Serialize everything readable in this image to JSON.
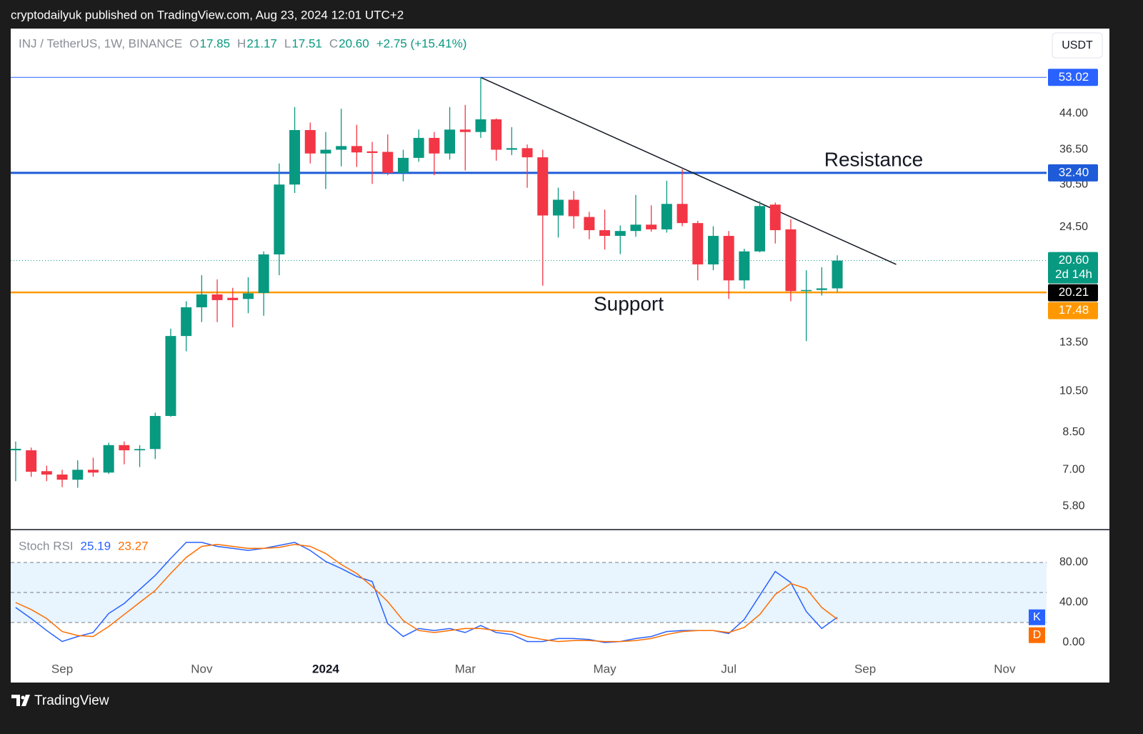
{
  "chart_data": {
    "type": "candlestick",
    "published": "cryptodailyuk published on TradingView.com, Aug 23, 2024 12:01 UTC+2",
    "brand": "TradingView",
    "currency": "USDT",
    "header": {
      "symbol": "INJ / TetherUS, 1W, BINANCE",
      "ohlc_labels": [
        "O",
        "H",
        "L",
        "C"
      ],
      "ohlc_values": [
        "17.85",
        "21.17",
        "17.51",
        "20.60"
      ],
      "change": "+2.75 (+15.41%)"
    },
    "up_color": "#089981",
    "down_color": "#f23645",
    "series": {
      "open": [
        7.74,
        7.74,
        6.95,
        6.83,
        6.65,
        7.0,
        6.9,
        7.95,
        7.74,
        7.79,
        9.24,
        13.96,
        16.19,
        17.3,
        17.0,
        16.9,
        17.43,
        21.27,
        30.5,
        40.4,
        35.8,
        36.5,
        37.2,
        36.2,
        36.1,
        32.4,
        35.0,
        38.8,
        35.8,
        40.5,
        40.0,
        42.7,
        36.5,
        36.8,
        35.1,
        26.0,
        28.2,
        25.8,
        24.1,
        23.4,
        24.0,
        24.8,
        24.2,
        27.6,
        25.0,
        20.2,
        23.4,
        18.6,
        21.6,
        27.5,
        24.2,
        17.6,
        17.7,
        17.85
      ],
      "high": [
        8.1,
        7.85,
        7.15,
        7.0,
        7.35,
        7.45,
        8.05,
        8.1,
        7.95,
        9.4,
        14.5,
        16.7,
        19.1,
        18.7,
        17.9,
        18.9,
        21.6,
        34.0,
        45.5,
        42.0,
        40.0,
        45.1,
        41.5,
        38.0,
        39.5,
        36.5,
        40.5,
        40.0,
        45.5,
        46.0,
        53.02,
        42.9,
        41.0,
        37.5,
        36.5,
        30.0,
        29.5,
        26.5,
        26.8,
        24.7,
        28.9,
        27.4,
        31.1,
        33.0,
        25.3,
        24.6,
        24.0,
        21.9,
        28.0,
        27.8,
        25.5,
        19.6,
        19.9,
        21.17
      ],
      "low": [
        6.6,
        6.75,
        6.6,
        6.4,
        6.38,
        6.75,
        6.85,
        7.2,
        7.1,
        7.4,
        9.2,
        12.9,
        15.0,
        15.0,
        14.6,
        15.7,
        15.5,
        19.1,
        29.2,
        34.0,
        29.8,
        33.5,
        33.4,
        30.6,
        32.0,
        31.0,
        34.3,
        32.0,
        34.7,
        32.8,
        38.8,
        34.5,
        35.5,
        30.0,
        18.1,
        23.2,
        24.3,
        23.0,
        21.8,
        21.3,
        23.3,
        23.9,
        23.8,
        24.6,
        18.6,
        19.6,
        16.9,
        17.8,
        21.5,
        22.5,
        16.7,
        13.6,
        17.2,
        17.51
      ],
      "close": [
        7.8,
        6.93,
        6.83,
        6.65,
        7.0,
        6.9,
        7.95,
        7.74,
        7.79,
        9.24,
        13.96,
        16.19,
        17.3,
        16.8,
        16.8,
        17.4,
        21.27,
        30.5,
        40.4,
        35.8,
        36.5,
        37.2,
        36.0,
        35.9,
        32.4,
        35.0,
        38.8,
        35.8,
        40.5,
        40.0,
        42.7,
        36.5,
        36.8,
        35.1,
        26.0,
        28.2,
        25.9,
        24.1,
        23.4,
        24.0,
        24.8,
        24.2,
        27.6,
        25.0,
        20.2,
        23.4,
        18.6,
        21.6,
        27.3,
        24.1,
        17.6,
        17.7,
        17.85,
        20.6
      ]
    },
    "log_scale": true,
    "grid": false,
    "ylim": [
      5.16,
      68.2
    ],
    "yticks": [
      {
        "value": 44,
        "label": "44.00"
      },
      {
        "value": 36.5,
        "label": "36.50"
      },
      {
        "value": 30.5,
        "label": "30.50"
      },
      {
        "value": 24.5,
        "label": "24.50"
      },
      {
        "value": 13.5,
        "label": "13.50"
      },
      {
        "value": 10.5,
        "label": "10.50"
      },
      {
        "value": 8.5,
        "label": "8.50"
      },
      {
        "value": 7,
        "label": "7.00"
      },
      {
        "value": 5.8,
        "label": "5.80"
      }
    ],
    "xlim": [
      -0.32,
      66.5
    ],
    "xticks": [
      {
        "value": 3,
        "label": "Sep"
      },
      {
        "value": 12,
        "label": "Nov"
      },
      {
        "value": 20,
        "label": "2024"
      },
      {
        "value": 29,
        "label": "Mar"
      },
      {
        "value": 38,
        "label": "May"
      },
      {
        "value": 46,
        "label": "Jul"
      },
      {
        "value": 54.8,
        "label": "Sep"
      },
      {
        "value": 63.8,
        "label": "Nov"
      }
    ],
    "levels": [
      {
        "value": 53.02,
        "label": "53.02",
        "color": "#2962ff",
        "width": 1
      },
      {
        "value": 32.4,
        "label": "32.40",
        "color": "#1e5bd8",
        "width": 3
      },
      {
        "value": 17.48,
        "label": "17.48",
        "color": "#ff9800",
        "width": 2.5
      }
    ],
    "last_price": {
      "value": 20.6,
      "label": "20.60",
      "countdown": "2d 14h",
      "color": "#089981"
    },
    "price_labels": [
      {
        "value": 20.21,
        "label": "20.21",
        "color": "#000000"
      }
    ],
    "trendline": {
      "x": [
        30,
        56.8
      ],
      "values": [
        53.02,
        20.2
      ]
    },
    "annotations": [
      {
        "text": "Resistance"
      },
      {
        "text": "Support"
      }
    ],
    "indicator": {
      "type": "line",
      "name": "Stoch RSI",
      "ylim": [
        -15,
        112.1
      ],
      "yticks": [
        {
          "value": 80,
          "label": "80.00"
        },
        {
          "value": 40,
          "label": "40.00"
        },
        {
          "value": 0,
          "label": "0.00"
        }
      ],
      "band": [
        20,
        80
      ],
      "midline": 50,
      "series": [
        {
          "name": "K",
          "color": "#2962ff",
          "values": [
            35,
            24,
            12,
            1,
            6,
            10,
            29,
            39,
            53,
            67,
            84,
            100,
            100,
            96,
            94,
            92,
            94,
            97,
            100,
            92,
            81,
            74,
            66,
            61,
            19,
            6,
            14,
            12,
            14,
            10,
            17,
            10,
            8,
            1,
            1,
            4,
            4,
            3,
            0,
            1,
            4,
            6,
            11,
            12,
            12,
            12,
            9,
            23,
            47,
            71,
            60,
            31,
            14,
            25.19
          ]
        },
        {
          "name": "D",
          "color": "#ff6d00",
          "values": [
            40,
            33,
            24,
            11,
            7,
            6,
            16,
            28,
            40,
            52,
            69,
            85,
            96,
            98,
            96,
            94,
            94,
            95,
            98,
            96,
            89,
            78,
            69,
            56,
            41,
            22,
            12,
            10,
            12,
            14,
            14,
            12,
            11,
            6,
            3,
            1,
            2,
            2,
            1,
            1,
            2,
            4,
            8,
            11,
            12,
            12,
            10,
            15,
            28,
            48,
            59,
            54,
            35,
            23.27
          ]
        }
      ]
    }
  }
}
